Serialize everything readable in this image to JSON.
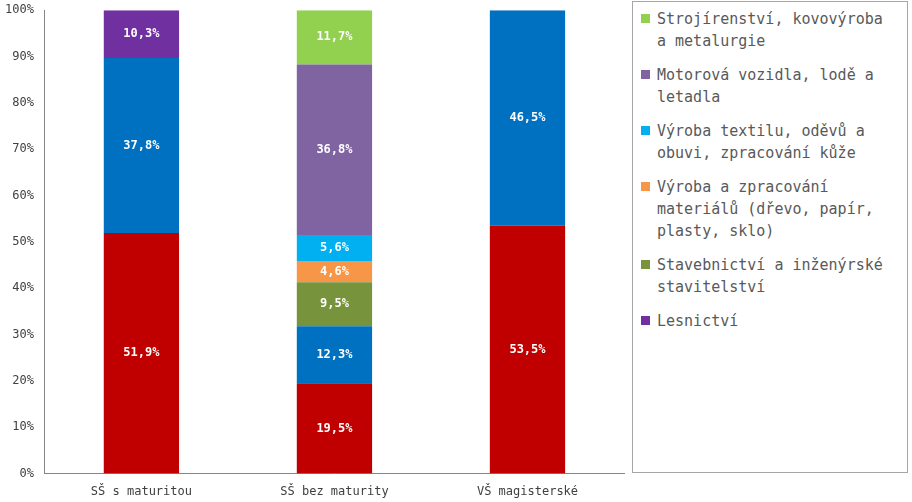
{
  "chart_data": {
    "type": "bar",
    "categories": [
      "SŠ s maturitou",
      "SŠ bez maturity",
      "VŠ magisterské"
    ],
    "series": [
      {
        "color": "#C00000",
        "values": [
          51.9,
          19.5,
          53.5
        ],
        "value_labels": [
          "51,9%",
          "19,5%",
          "53,5%"
        ]
      },
      {
        "color": "#0070C0",
        "values": [
          37.8,
          12.3,
          46.5
        ],
        "value_labels": [
          "37,8%",
          "12,3%",
          "46,5%"
        ]
      },
      {
        "name": "Lesnictví",
        "color": "#7030A0",
        "values": [
          10.3,
          null,
          null
        ],
        "value_labels": [
          "10,3%",
          null,
          null
        ]
      },
      {
        "name": "Stavebnictví a inženýrské stavitelství",
        "color": "#77933C",
        "values": [
          null,
          9.5,
          null
        ],
        "value_labels": [
          null,
          "9,5%",
          null
        ]
      },
      {
        "name": "Výroba a zpracování materiálů (dřevo, papír, plasty, sklo)",
        "color": "#F79646",
        "values": [
          null,
          4.6,
          null
        ],
        "value_labels": [
          null,
          "4,6%",
          null
        ]
      },
      {
        "name": "Výroba textilu, oděvů a obuvi, zpracování kůže",
        "color": "#00B0F0",
        "values": [
          null,
          5.6,
          null
        ],
        "value_labels": [
          null,
          "5,6%",
          null
        ]
      },
      {
        "name": "Motorová vozidla, lodě a letadla",
        "color": "#8064A2",
        "values": [
          null,
          36.8,
          null
        ],
        "value_labels": [
          null,
          "36,8%",
          null
        ]
      },
      {
        "name": "Strojírenství, kovovýroba a metalurgie",
        "color": "#92D050",
        "values": [
          null,
          11.7,
          null
        ],
        "value_labels": [
          null,
          "11,7%",
          null
        ]
      }
    ],
    "ylim": [
      0,
      100
    ],
    "yticks": [
      {
        "value": 0,
        "label": "0%"
      },
      {
        "value": 10,
        "label": "10%"
      },
      {
        "value": 20,
        "label": "20%"
      },
      {
        "value": 30,
        "label": "30%"
      },
      {
        "value": 40,
        "label": "40%"
      },
      {
        "value": 50,
        "label": "50%"
      },
      {
        "value": 60,
        "label": "60%"
      },
      {
        "value": 70,
        "label": "70%"
      },
      {
        "value": 80,
        "label": "80%"
      },
      {
        "value": 90,
        "label": "90%"
      },
      {
        "value": 100,
        "label": "100%"
      }
    ],
    "stacked": true,
    "data_labels": true,
    "grid": false,
    "legend": "right"
  }
}
